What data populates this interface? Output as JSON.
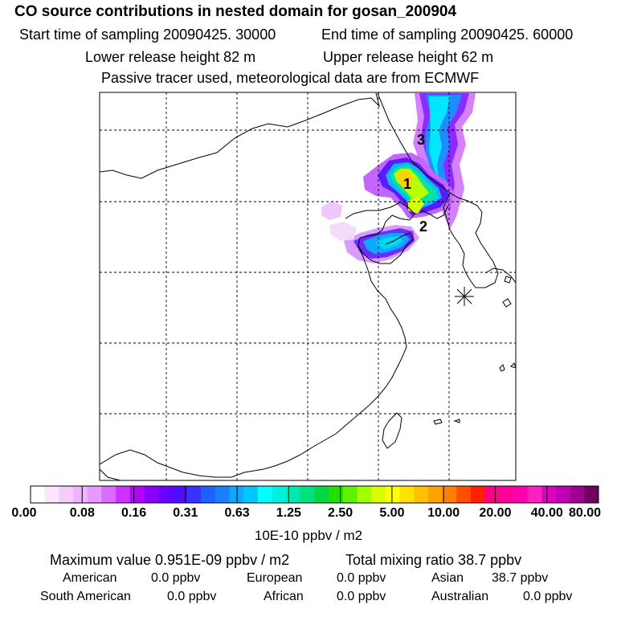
{
  "header": {
    "title": "CO  source contributions in nested domain for gosan_200904",
    "start_time": "Start time of sampling 20090425. 30000",
    "end_time": "End time of sampling 20090425. 60000",
    "lower_release": "Lower release height   82 m",
    "upper_release": "Upper release height   62 m",
    "tracer_note": "Passive tracer used, meteorological data are from ECMWF"
  },
  "map": {
    "receptor_labels": [
      "1",
      "2",
      "3"
    ],
    "receptor_marker": "asterisk-station-icon",
    "grid_style": "dashed"
  },
  "colorbar": {
    "ticks": [
      "0.00",
      "0.08",
      "0.16",
      "0.31",
      "0.63",
      "1.25",
      "2.50",
      "5.00",
      "10.00",
      "20.00",
      "40.00",
      "80.00"
    ],
    "colors": [
      "#ffffff",
      "#fbe6ff",
      "#f5ccff",
      "#efb3ff",
      "#e799ff",
      "#dc6cff",
      "#cc33ff",
      "#b300ff",
      "#8a00ff",
      "#6a00ff",
      "#4c10ff",
      "#3a30ff",
      "#2060ff",
      "#1a80ff",
      "#10a8ff",
      "#00c8ff",
      "#00ffff",
      "#00f0e0",
      "#00e8b0",
      "#00e080",
      "#00d840",
      "#20e000",
      "#60f000",
      "#a0ff00",
      "#d8ff00",
      "#ffff00",
      "#ffe000",
      "#ffc000",
      "#ffa000",
      "#ff8000",
      "#ff5000",
      "#ff2000",
      "#ff0080",
      "#ff0098",
      "#ff00b0",
      "#ff20c0",
      "#e000c0",
      "#c000b0",
      "#a00090",
      "#700060"
    ],
    "units": "10E-10 ppbv / m2"
  },
  "stats": {
    "max_value": "Maximum value  0.951E-09 ppbv / m2",
    "total_mixing": "Total mixing ratio       38.7 ppbv",
    "american_label": "American",
    "american_value": "0.0 ppbv",
    "european_label": "European",
    "european_value": "0.0 ppbv",
    "asian_label": "Asian",
    "asian_value": "38.7 ppbv",
    "south_american_label": "South American",
    "south_american_value": "0.0 ppbv",
    "african_label": "African",
    "african_value": "0.0 ppbv",
    "australian_label": "Australian",
    "australian_value": "0.0 ppbv"
  }
}
